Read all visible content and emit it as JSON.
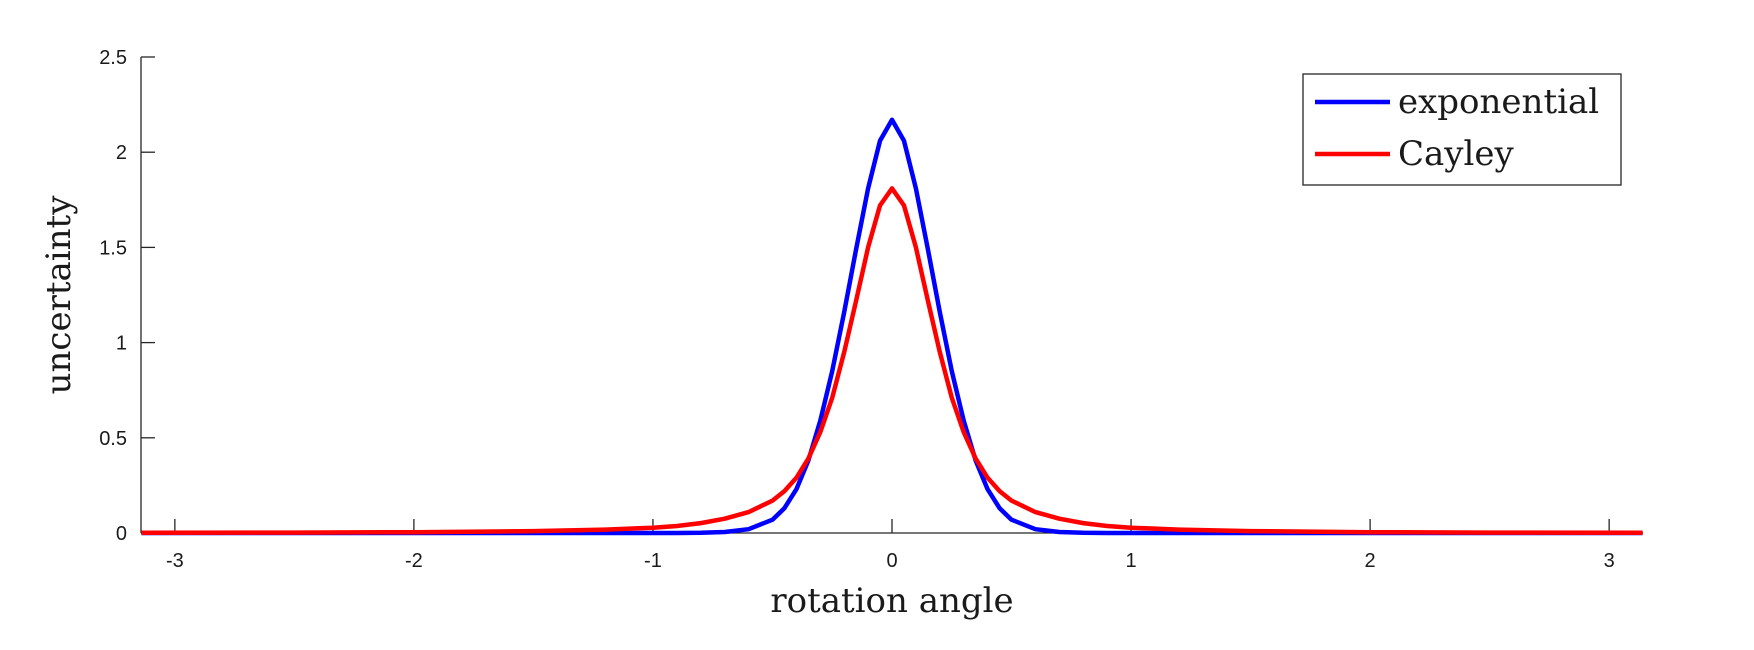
{
  "chart_data": {
    "type": "line",
    "xlabel": "rotation angle",
    "ylabel": "uncertainty",
    "xlim": [
      -3.14159,
      3.14159
    ],
    "ylim": [
      0,
      2.5
    ],
    "xticks": [
      -3,
      -2,
      -1,
      0,
      1,
      2,
      3
    ],
    "xtick_labels": [
      "-3",
      "-2",
      "-1",
      "0",
      "1",
      "2",
      "3"
    ],
    "yticks": [
      0,
      0.5,
      1,
      1.5,
      2,
      2.5
    ],
    "ytick_labels": [
      "0",
      "0.5",
      "1",
      "1.5",
      "2",
      "2.5"
    ],
    "grid": false,
    "legend_position": "top-right",
    "x": [
      -3.14,
      -2.5,
      -2.0,
      -1.5,
      -1.2,
      -1.0,
      -0.9,
      -0.8,
      -0.7,
      -0.6,
      -0.5,
      -0.45,
      -0.4,
      -0.35,
      -0.3,
      -0.25,
      -0.2,
      -0.15,
      -0.1,
      -0.05,
      0,
      0.05,
      0.1,
      0.15,
      0.2,
      0.25,
      0.3,
      0.35,
      0.4,
      0.45,
      0.5,
      0.6,
      0.7,
      0.8,
      0.9,
      1.0,
      1.2,
      1.5,
      2.0,
      2.5,
      3.14
    ],
    "series": [
      {
        "name": "exponential",
        "color": "#0000ff",
        "values": [
          0,
          0,
          0,
          0,
          0,
          0,
          0,
          0.001,
          0.005,
          0.02,
          0.07,
          0.13,
          0.23,
          0.38,
          0.59,
          0.85,
          1.16,
          1.49,
          1.81,
          2.06,
          2.17,
          2.06,
          1.81,
          1.49,
          1.16,
          0.85,
          0.59,
          0.38,
          0.23,
          0.13,
          0.07,
          0.02,
          0.005,
          0.001,
          0,
          0,
          0,
          0,
          0,
          0,
          0
        ]
      },
      {
        "name": "Cayley",
        "color": "#ff0000",
        "values": [
          0.001,
          0.002,
          0.004,
          0.01,
          0.018,
          0.028,
          0.037,
          0.052,
          0.075,
          0.11,
          0.17,
          0.22,
          0.29,
          0.39,
          0.53,
          0.71,
          0.95,
          1.22,
          1.5,
          1.72,
          1.81,
          1.72,
          1.5,
          1.22,
          0.95,
          0.71,
          0.53,
          0.39,
          0.29,
          0.22,
          0.17,
          0.11,
          0.075,
          0.052,
          0.037,
          0.028,
          0.018,
          0.01,
          0.004,
          0.002,
          0.001
        ]
      }
    ]
  }
}
